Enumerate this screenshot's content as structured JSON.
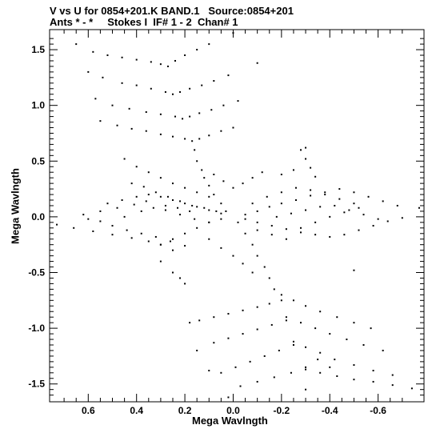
{
  "header": {
    "line1": "V vs U for 0854+201.K BAND.1   Source:0854+201",
    "line2": "Ants * - *     Stokes I  IF# 1 - 2  Chan# 1"
  },
  "chart_data": {
    "type": "scatter",
    "title": "V vs U for 0854+201.K BAND.1   Source:0854+201",
    "subtitle": "Ants * - *     Stokes I  IF# 1 - 2  Chan# 1",
    "xlabel": "Mega Wavlngth",
    "ylabel": "Mega Wavlngth",
    "xlim": [
      0.76,
      -0.79
    ],
    "ylim": [
      -1.66,
      1.68
    ],
    "x_reversed": true,
    "xticks": [
      0.6,
      0.4,
      0.2,
      0.0,
      -0.2,
      -0.4,
      -0.6
    ],
    "xtick_labels": [
      "0.6",
      "0.4",
      "0.2",
      "0.0",
      "-0.2",
      "-0.4",
      "-0.6"
    ],
    "yticks": [
      1.5,
      1.0,
      0.5,
      0.0,
      -0.5,
      -1.0,
      -1.5
    ],
    "ytick_labels": [
      "1.5",
      "1.0",
      "0.5",
      "0.0",
      "-0.5",
      "-1.0",
      "-1.5"
    ],
    "grid": false,
    "series": [
      {
        "name": "",
        "color": "#000000",
        "points": [
          [
            0.65,
            1.55
          ],
          [
            0.58,
            1.48
          ],
          [
            0.52,
            1.45
          ],
          [
            0.46,
            1.43
          ],
          [
            0.4,
            1.41
          ],
          [
            0.34,
            1.39
          ],
          [
            0.3,
            1.37
          ],
          [
            0.27,
            1.35
          ],
          [
            0.24,
            1.4
          ],
          [
            0.2,
            1.45
          ],
          [
            0.15,
            1.5
          ],
          [
            0.1,
            1.55
          ],
          [
            0.6,
            1.3
          ],
          [
            0.54,
            1.25
          ],
          [
            0.46,
            1.2
          ],
          [
            0.4,
            1.18
          ],
          [
            0.34,
            1.15
          ],
          [
            0.28,
            1.12
          ],
          [
            0.25,
            1.1
          ],
          [
            0.22,
            1.12
          ],
          [
            0.18,
            1.15
          ],
          [
            0.13,
            1.18
          ],
          [
            0.08,
            1.22
          ],
          [
            0.02,
            1.27
          ],
          [
            0.57,
            1.06
          ],
          [
            0.5,
            1.0
          ],
          [
            0.43,
            0.97
          ],
          [
            0.36,
            0.94
          ],
          [
            0.3,
            0.92
          ],
          [
            0.24,
            0.9
          ],
          [
            0.21,
            0.88
          ],
          [
            0.18,
            0.9
          ],
          [
            0.14,
            0.93
          ],
          [
            0.09,
            0.96
          ],
          [
            0.04,
            1.0
          ],
          [
            -0.02,
            1.04
          ],
          [
            0.55,
            0.86
          ],
          [
            0.48,
            0.82
          ],
          [
            0.42,
            0.79
          ],
          [
            0.36,
            0.77
          ],
          [
            0.3,
            0.74
          ],
          [
            0.25,
            0.72
          ],
          [
            0.2,
            0.7
          ],
          [
            0.17,
            0.68
          ],
          [
            0.14,
            0.7
          ],
          [
            0.1,
            0.73
          ],
          [
            0.05,
            0.77
          ],
          [
            0.0,
            0.8
          ],
          [
            0.16,
            0.6
          ],
          [
            0.15,
            0.5
          ],
          [
            0.13,
            0.42
          ],
          [
            0.12,
            0.35
          ],
          [
            0.1,
            0.28
          ],
          [
            0.08,
            0.2
          ],
          [
            0.05,
            0.12
          ],
          [
            0.03,
            0.05
          ],
          [
            -0.02,
            -0.05
          ],
          [
            -0.05,
            -0.15
          ],
          [
            -0.08,
            -0.25
          ],
          [
            -0.1,
            -0.35
          ],
          [
            -0.13,
            -0.45
          ],
          [
            -0.15,
            -0.55
          ],
          [
            -0.17,
            -0.65
          ],
          [
            -0.2,
            -0.7
          ],
          [
            -0.25,
            -0.75
          ],
          [
            -0.3,
            -0.8
          ],
          [
            -0.36,
            -0.85
          ],
          [
            -0.43,
            -0.9
          ],
          [
            -0.5,
            -0.95
          ],
          [
            -0.57,
            -1.0
          ],
          [
            -0.2,
            -0.75
          ],
          [
            -0.15,
            -0.78
          ],
          [
            -0.1,
            -0.81
          ],
          [
            -0.04,
            -0.84
          ],
          [
            0.02,
            -0.87
          ],
          [
            0.08,
            -0.9
          ],
          [
            0.14,
            -0.93
          ],
          [
            -0.22,
            -0.9
          ],
          [
            -0.28,
            -0.95
          ],
          [
            -0.34,
            -1.0
          ],
          [
            -0.4,
            -1.05
          ],
          [
            -0.47,
            -1.1
          ],
          [
            -0.54,
            -1.15
          ],
          [
            -0.62,
            -1.2
          ],
          [
            -0.22,
            -0.93
          ],
          [
            -0.16,
            -0.97
          ],
          [
            -0.1,
            -1.01
          ],
          [
            -0.04,
            -1.05
          ],
          [
            0.02,
            -1.09
          ],
          [
            0.08,
            -1.13
          ],
          [
            -0.25,
            -1.12
          ],
          [
            -0.3,
            -1.17
          ],
          [
            -0.36,
            -1.22
          ],
          [
            -0.42,
            -1.28
          ],
          [
            -0.5,
            -1.33
          ],
          [
            -0.58,
            -1.38
          ],
          [
            -0.66,
            -1.42
          ],
          [
            -0.25,
            -1.15
          ],
          [
            -0.19,
            -1.2
          ],
          [
            -0.13,
            -1.25
          ],
          [
            -0.07,
            -1.3
          ],
          [
            -0.01,
            -1.35
          ],
          [
            0.05,
            -1.4
          ],
          [
            -0.3,
            -1.37
          ],
          [
            -0.36,
            -1.4
          ],
          [
            -0.43,
            -1.43
          ],
          [
            -0.5,
            -1.46
          ],
          [
            -0.58,
            -1.48
          ],
          [
            -0.66,
            -1.51
          ],
          [
            -0.74,
            -1.54
          ],
          [
            -0.3,
            -1.35
          ],
          [
            -0.24,
            -1.4
          ],
          [
            -0.17,
            -1.44
          ],
          [
            -0.1,
            -1.48
          ],
          [
            -0.03,
            -1.52
          ],
          [
            0.73,
            -0.07
          ],
          [
            0.66,
            -0.1
          ],
          [
            0.58,
            -0.13
          ],
          [
            0.5,
            -0.16
          ],
          [
            0.42,
            -0.19
          ],
          [
            0.35,
            -0.22
          ],
          [
            0.3,
            -0.25
          ],
          [
            0.25,
            -0.2
          ],
          [
            0.2,
            -0.15
          ],
          [
            0.15,
            -0.1
          ],
          [
            0.1,
            -0.05
          ],
          [
            0.05,
            -0.02
          ],
          [
            0.62,
            0.02
          ],
          [
            0.55,
            0.05
          ],
          [
            0.48,
            0.08
          ],
          [
            0.41,
            0.11
          ],
          [
            0.36,
            0.14
          ],
          [
            0.3,
            0.18
          ],
          [
            0.25,
            0.15
          ],
          [
            0.2,
            0.12
          ],
          [
            0.15,
            0.09
          ],
          [
            0.1,
            0.06
          ],
          [
            0.05,
            0.03
          ],
          [
            0.52,
            0.12
          ],
          [
            0.46,
            0.15
          ],
          [
            0.4,
            0.18
          ],
          [
            0.35,
            0.2
          ],
          [
            0.28,
            0.06
          ],
          [
            0.22,
            0.02
          ],
          [
            0.16,
            -0.02
          ],
          [
            0.1,
            -0.05
          ],
          [
            0.5,
            -0.08
          ],
          [
            0.44,
            -0.12
          ],
          [
            0.38,
            -0.15
          ],
          [
            0.32,
            -0.18
          ],
          [
            0.26,
            -0.22
          ],
          [
            0.2,
            -0.26
          ],
          [
            -0.05,
            0.02
          ],
          [
            -0.1,
            0.05
          ],
          [
            -0.15,
            0.09
          ],
          [
            -0.2,
            0.12
          ],
          [
            -0.26,
            0.15
          ],
          [
            -0.32,
            0.19
          ],
          [
            -0.38,
            0.22
          ],
          [
            -0.44,
            0.25
          ],
          [
            -0.5,
            0.22
          ],
          [
            -0.56,
            0.18
          ],
          [
            -0.62,
            0.14
          ],
          [
            -0.68,
            0.1
          ],
          [
            -0.77,
            0.08
          ],
          [
            -0.05,
            -0.02
          ],
          [
            -0.1,
            -0.05
          ],
          [
            -0.16,
            -0.08
          ],
          [
            -0.22,
            -0.11
          ],
          [
            -0.28,
            -0.14
          ],
          [
            -0.34,
            -0.16
          ],
          [
            -0.4,
            -0.18
          ],
          [
            -0.46,
            -0.16
          ],
          [
            -0.52,
            -0.12
          ],
          [
            -0.58,
            -0.08
          ],
          [
            -0.64,
            -0.04
          ],
          [
            -0.7,
            -0.01
          ],
          [
            -0.08,
            0.12
          ],
          [
            -0.14,
            0.18
          ],
          [
            -0.2,
            0.22
          ],
          [
            -0.26,
            0.26
          ],
          [
            -0.32,
            0.24
          ],
          [
            -0.38,
            0.2
          ],
          [
            -0.44,
            0.16
          ],
          [
            -0.5,
            0.12
          ],
          [
            -0.1,
            -0.12
          ],
          [
            -0.16,
            -0.16
          ],
          [
            -0.22,
            -0.2
          ],
          [
            -0.28,
            -0.1
          ],
          [
            -0.34,
            -0.05
          ],
          [
            -0.4,
            0.0
          ],
          [
            -0.46,
            0.04
          ],
          [
            -0.52,
            0.08
          ],
          [
            0.45,
            0.52
          ],
          [
            0.4,
            0.45
          ],
          [
            0.35,
            0.4
          ],
          [
            0.3,
            0.35
          ],
          [
            0.25,
            0.3
          ],
          [
            0.2,
            0.26
          ],
          [
            0.15,
            0.22
          ],
          [
            0.1,
            0.18
          ],
          [
            0.08,
            0.38
          ],
          [
            0.04,
            0.32
          ],
          [
            0.0,
            0.26
          ],
          [
            -0.04,
            0.3
          ],
          [
            -0.08,
            0.35
          ],
          [
            -0.12,
            0.4
          ],
          [
            -0.28,
            0.6
          ],
          [
            -0.3,
            0.52
          ],
          [
            -0.32,
            0.44
          ],
          [
            -0.34,
            0.36
          ],
          [
            -0.25,
            0.42
          ],
          [
            -0.2,
            0.38
          ],
          [
            0.1,
            -0.2
          ],
          [
            0.05,
            -0.28
          ],
          [
            0.0,
            -0.35
          ],
          [
            -0.04,
            -0.42
          ],
          [
            -0.08,
            -0.5
          ],
          [
            0.3,
            -0.4
          ],
          [
            0.25,
            -0.5
          ],
          [
            0.22,
            -0.55
          ],
          [
            0.2,
            -0.6
          ],
          [
            0.25,
            -0.3
          ],
          [
            0.3,
            -0.25
          ],
          [
            0.18,
            -0.95
          ],
          [
            0.15,
            -1.2
          ],
          [
            0.1,
            -1.38
          ],
          [
            0.02,
            -1.62
          ],
          [
            0.0,
            1.65
          ],
          [
            -0.1,
            1.38
          ],
          [
            -0.3,
            0.62
          ],
          [
            -0.5,
            -0.48
          ],
          [
            -0.35,
            -1.28
          ],
          [
            -0.4,
            -1.35
          ],
          [
            -0.3,
            -1.55
          ],
          [
            0.42,
            0.3
          ],
          [
            0.37,
            0.27
          ],
          [
            0.32,
            0.22
          ],
          [
            0.27,
            0.18
          ],
          [
            0.22,
            0.14
          ],
          [
            0.17,
            0.1
          ],
          [
            0.12,
            0.08
          ],
          [
            0.07,
            0.05
          ],
          [
            0.6,
            -0.02
          ],
          [
            0.55,
            -0.04
          ],
          [
            0.45,
            0.0
          ],
          [
            0.38,
            0.05
          ],
          [
            0.33,
            0.08
          ],
          [
            0.28,
            0.1
          ],
          [
            0.23,
            0.08
          ],
          [
            0.18,
            0.05
          ],
          [
            -0.18,
            0.0
          ],
          [
            -0.24,
            0.03
          ],
          [
            -0.3,
            0.06
          ],
          [
            -0.36,
            0.09
          ],
          [
            -0.42,
            0.1
          ],
          [
            -0.48,
            0.06
          ],
          [
            -0.54,
            0.02
          ],
          [
            -0.6,
            -0.02
          ]
        ]
      }
    ]
  }
}
